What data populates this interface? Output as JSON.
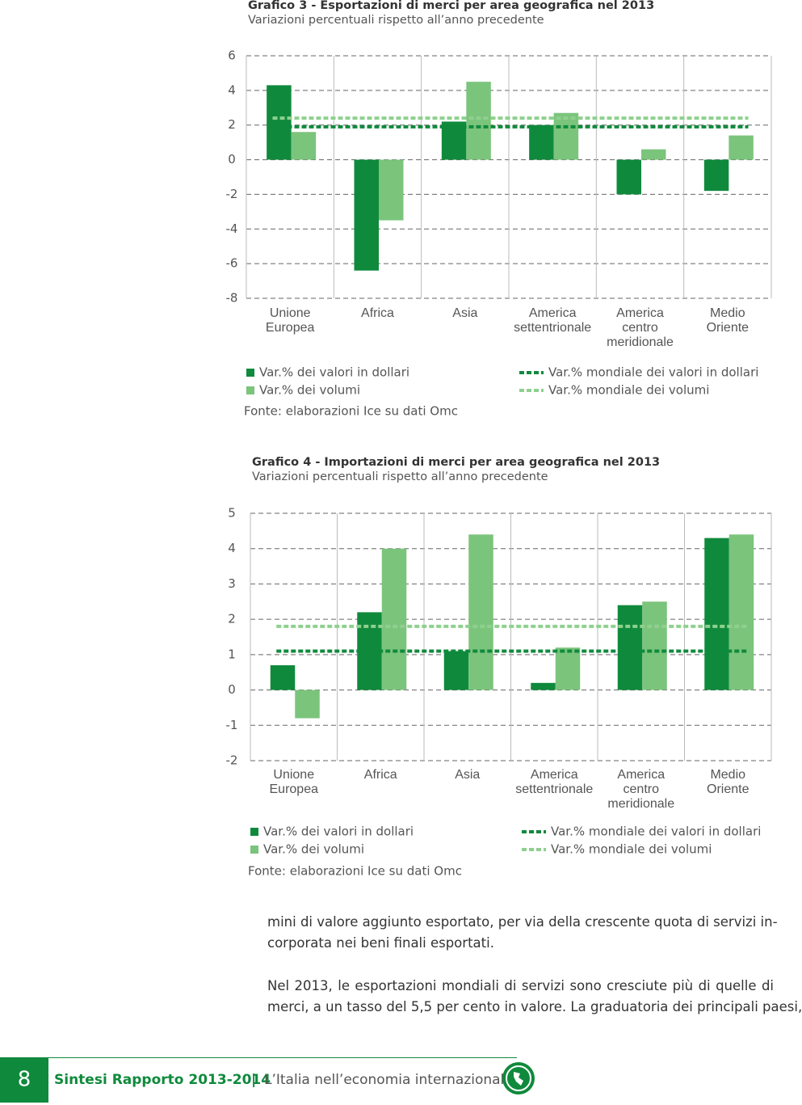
{
  "chart_data": [
    {
      "type": "bar",
      "title": "Grafico 3 - Esportazioni di merci per area geografica nel 2013",
      "subtitle": "Variazioni percentuali rispetto all’anno precedente",
      "categories": [
        "Unione Europea",
        "Africa",
        "Asia",
        "America settentrionale",
        "America centro meridionale",
        "Medio Oriente"
      ],
      "series": [
        {
          "name": "Var.% dei valori in dollari",
          "color": "#0f8a3c",
          "values": [
            4.3,
            -6.4,
            2.2,
            2.0,
            -2.0,
            -1.8
          ]
        },
        {
          "name": "Var.% dei volumi",
          "color": "#7bc47c",
          "values": [
            1.6,
            -3.5,
            4.5,
            2.7,
            0.6,
            1.4
          ]
        }
      ],
      "reference_lines": [
        {
          "name": "Var.% mondiale dei valori in dollari",
          "color": "#0f8a3c",
          "value": 1.9
        },
        {
          "name": "Var.% mondiale dei volumi",
          "color": "#8fd08f",
          "value": 2.4
        }
      ],
      "ylim": [
        -8,
        6
      ],
      "yticks": [
        -8,
        -6,
        -4,
        -2,
        0,
        2,
        4,
        6
      ],
      "grid": true,
      "source": "Fonte: elaborazioni Ice su dati Omc"
    },
    {
      "type": "bar",
      "title": "Grafico 4 - Importazioni di merci per area geografica nel 2013",
      "subtitle": "Variazioni percentuali rispetto all’anno precedente",
      "categories": [
        "Unione Europea",
        "Africa",
        "Asia",
        "America settentrionale",
        "America centro meridionale",
        "Medio Oriente"
      ],
      "series": [
        {
          "name": "Var.% dei valori in dollari",
          "color": "#0f8a3c",
          "values": [
            0.7,
            2.2,
            1.1,
            0.2,
            2.4,
            4.3
          ]
        },
        {
          "name": "Var.% dei volumi",
          "color": "#7bc47c",
          "values": [
            -0.8,
            4.0,
            4.4,
            1.2,
            2.5,
            4.4
          ]
        }
      ],
      "reference_lines": [
        {
          "name": "Var.% mondiale dei valori in dollari",
          "color": "#0f8a3c",
          "value": 1.1
        },
        {
          "name": "Var.% mondiale dei volumi",
          "color": "#8fd08f",
          "value": 1.8
        }
      ],
      "ylim": [
        -2,
        5
      ],
      "yticks": [
        -2,
        -1,
        0,
        1,
        2,
        3,
        4,
        5
      ],
      "grid": true,
      "source": "Fonte: elaborazioni Ice su dati Omc"
    }
  ],
  "body": {
    "paragraphs": [
      [
        "mini di valore aggiunto esportato, per via della crescente quota di servizi in-",
        "corporata nei beni finali esportati."
      ],
      [
        "Nel 2013, le esportazioni mondiali di servizi sono cresciute più di quelle di",
        "merci, a un tasso del 5,5 per cento in valore. La graduatoria dei principali paesi,"
      ]
    ]
  },
  "footer": {
    "page_number": "8",
    "publication": "Sintesi Rapporto 2013-2014",
    "separator": "|",
    "subtitle": "L’Italia nell’economia internazionale"
  }
}
